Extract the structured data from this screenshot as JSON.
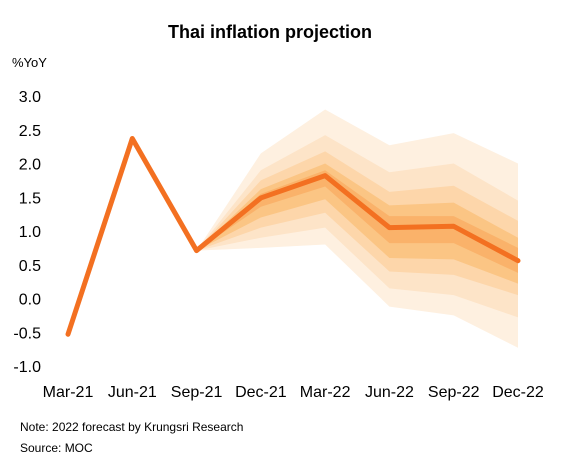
{
  "chart_data": {
    "type": "line",
    "title": "Thai inflation projection",
    "ylabel": "%YoY",
    "xlabel": "",
    "categories": [
      "Mar-21",
      "Jun-21",
      "Sep-21",
      "Dec-21",
      "Mar-22",
      "Jun-22",
      "Sep-22",
      "Dec-22"
    ],
    "ylim": [
      -1.0,
      3.0
    ],
    "yticks": [
      "3.0",
      "2.5",
      "2.0",
      "1.5",
      "1.0",
      "0.5",
      "0.0",
      "-0.5",
      "-1.0"
    ],
    "grid": false,
    "series": [
      {
        "values": [
          -0.53,
          2.37,
          0.71,
          1.49,
          1.82,
          1.05,
          1.07,
          0.56
        ],
        "color": "#F37021"
      }
    ],
    "fan_bands": {
      "start_index": 2,
      "colors": [
        "#FEF0E0",
        "#FDE4C8",
        "#FDD6AA",
        "#FBC584",
        "#FAB26A"
      ],
      "bands": [
        {
          "lower": [
            0.71,
            0.75,
            0.8,
            -0.12,
            -0.25,
            -0.73
          ],
          "upper": [
            0.71,
            2.15,
            2.8,
            2.27,
            2.45,
            2.0
          ]
        },
        {
          "lower": [
            0.71,
            0.9,
            1.05,
            0.15,
            0.05,
            -0.28
          ],
          "upper": [
            0.71,
            1.9,
            2.42,
            1.87,
            2.0,
            1.45
          ]
        },
        {
          "lower": [
            0.71,
            1.05,
            1.27,
            0.4,
            0.35,
            0.05
          ],
          "upper": [
            0.71,
            1.75,
            2.18,
            1.58,
            1.67,
            1.15
          ]
        },
        {
          "lower": [
            0.71,
            1.2,
            1.47,
            0.6,
            0.58,
            0.22
          ],
          "upper": [
            0.71,
            1.62,
            2.0,
            1.38,
            1.42,
            0.9
          ]
        },
        {
          "lower": [
            0.71,
            1.36,
            1.66,
            0.82,
            0.82,
            0.38
          ],
          "upper": [
            0.71,
            1.55,
            1.9,
            1.22,
            1.22,
            0.75
          ]
        }
      ]
    }
  },
  "footer": {
    "note": "Note: 2022 forecast by Krungsri Research",
    "source": "Source:  MOC"
  }
}
